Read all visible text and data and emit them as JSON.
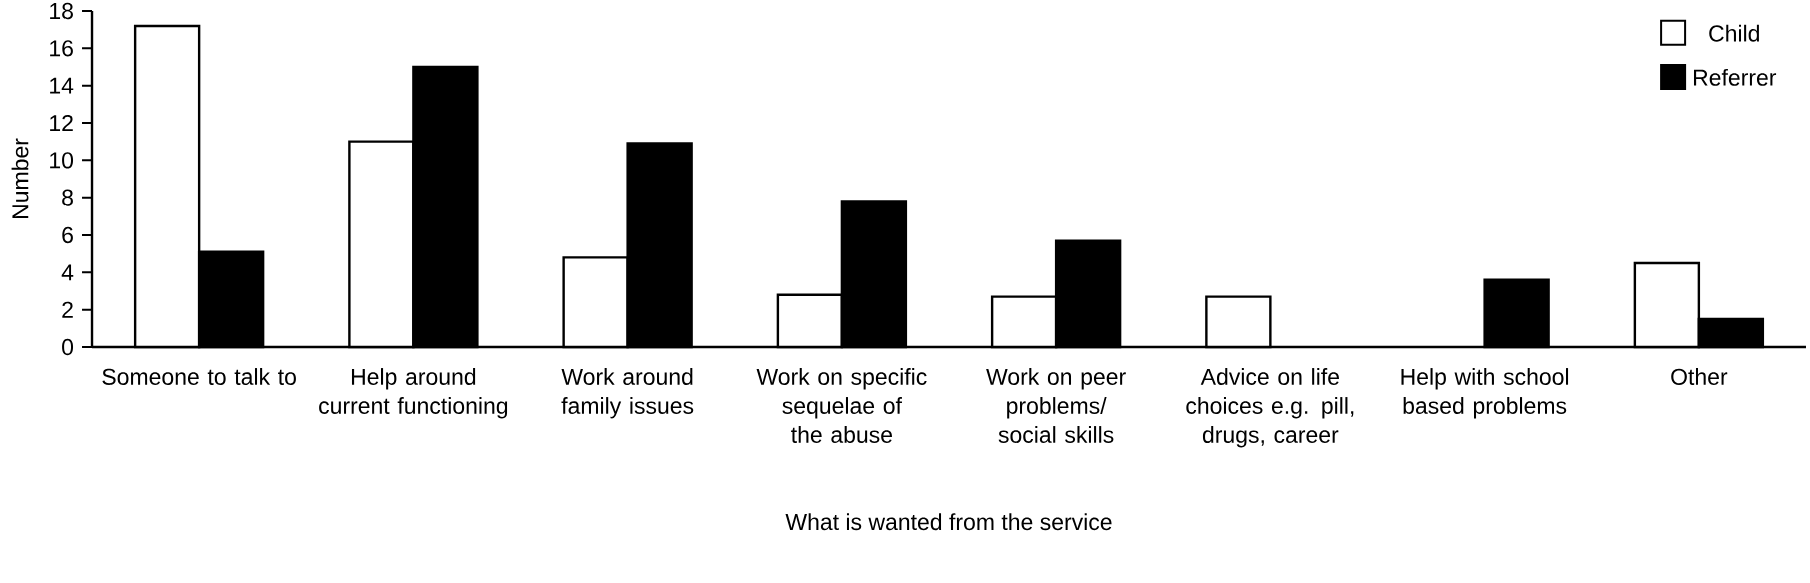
{
  "chart_data": {
    "type": "bar",
    "xlabel": "What is wanted from the service",
    "ylabel": "Number",
    "categories": [
      "Someone to talk to",
      "Help around current functioning",
      "Work around family issues",
      "Work on specific sequelae of the abuse",
      "Work on peer problems/ social skills",
      "Advice on life choices e.g. pill, drugs, career",
      "Help with school based problems",
      "Other"
    ],
    "series": [
      {
        "name": "Child",
        "color": "#ffffff",
        "values": [
          17.2,
          11,
          4.8,
          2.8,
          2.7,
          2.7,
          null,
          4.5
        ]
      },
      {
        "name": "Referrer",
        "color": "#000000",
        "values": [
          5.1,
          15,
          10.9,
          7.8,
          5.7,
          null,
          3.6,
          1.5
        ]
      }
    ],
    "ylim": [
      0,
      18
    ],
    "yticks": [
      0,
      2,
      4,
      6,
      8,
      10,
      12,
      14,
      16,
      18
    ],
    "legend": "top right"
  }
}
